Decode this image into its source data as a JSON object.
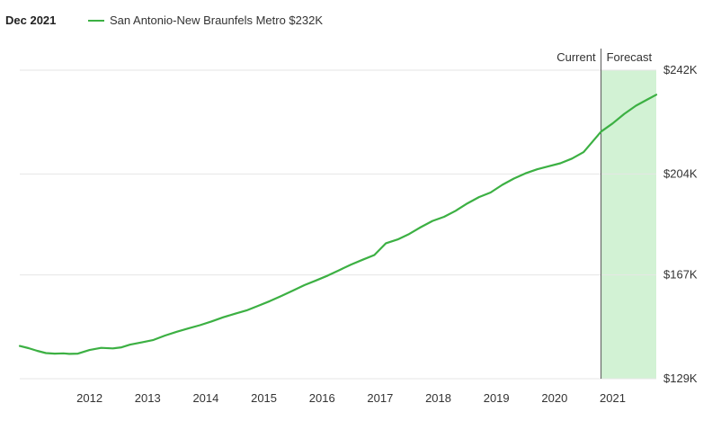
{
  "header": {
    "date_label": "Dec 2021",
    "legend_label": "San Antonio-New Braunfels Metro $232K"
  },
  "colors": {
    "line": "#3cb043",
    "forecast_fill": "#d2f2d4",
    "grid": "#e6e6e6",
    "divider": "#555555",
    "text": "#333333"
  },
  "chart_data": {
    "type": "line",
    "title": "Dec 2021",
    "xlabel": "",
    "ylabel": "",
    "x_ticks": [
      "2012",
      "2013",
      "2014",
      "2015",
      "2016",
      "2017",
      "2018",
      "2019",
      "2020",
      "2021"
    ],
    "y_ticks": [
      "$129K",
      "$167K",
      "$204K",
      "$242K"
    ],
    "ylim": [
      129,
      242
    ],
    "xlim": [
      2011.0,
      2021.95
    ],
    "current_label": "Current",
    "forecast_label": "Forecast",
    "forecast_start": 2021.0,
    "series": [
      {
        "name": "San Antonio-New Braunfels Metro",
        "x": [
          2011.0,
          2011.15,
          2011.3,
          2011.45,
          2011.6,
          2011.75,
          2011.85,
          2012.0,
          2012.2,
          2012.4,
          2012.6,
          2012.75,
          2012.9,
          2013.1,
          2013.3,
          2013.5,
          2013.7,
          2013.9,
          2014.1,
          2014.3,
          2014.5,
          2014.7,
          2014.9,
          2015.1,
          2015.3,
          2015.5,
          2015.7,
          2015.9,
          2016.1,
          2016.3,
          2016.5,
          2016.7,
          2016.9,
          2017.1,
          2017.3,
          2017.5,
          2017.7,
          2017.9,
          2018.1,
          2018.3,
          2018.5,
          2018.7,
          2018.9,
          2019.1,
          2019.3,
          2019.5,
          2019.7,
          2019.9,
          2020.1,
          2020.3,
          2020.5,
          2020.7,
          2020.9,
          2021.0,
          2021.2,
          2021.4,
          2021.6,
          2021.8,
          2021.95
        ],
        "values": [
          141.0,
          140.2,
          139.2,
          138.4,
          138.2,
          138.3,
          138.1,
          138.2,
          139.5,
          140.3,
          140.1,
          140.5,
          141.5,
          142.3,
          143.2,
          144.8,
          146.2,
          147.4,
          148.6,
          150.0,
          151.5,
          152.8,
          154.0,
          155.7,
          157.4,
          159.3,
          161.3,
          163.3,
          165.0,
          166.8,
          168.8,
          170.8,
          172.6,
          174.3,
          178.6,
          180.0,
          182.0,
          184.5,
          186.8,
          188.3,
          190.5,
          193.2,
          195.5,
          197.2,
          200.0,
          202.3,
          204.2,
          205.7,
          206.8,
          207.9,
          209.6,
          212.0,
          217.0,
          219.5,
          222.5,
          226.0,
          229.0,
          231.3,
          233.0
        ]
      }
    ]
  }
}
